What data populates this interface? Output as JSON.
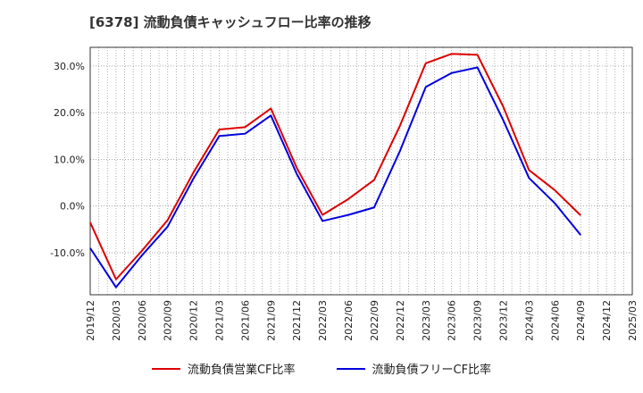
{
  "chart_data": {
    "type": "line",
    "title": "[6378]  流動負債キャッシュフロー比率の推移",
    "xlabel": "",
    "ylabel": "",
    "ylim": [
      -19,
      34
    ],
    "yticks": [
      -10,
      0,
      10,
      20,
      30
    ],
    "ytick_labels": [
      "-10.0%",
      "0.0%",
      "10.0%",
      "20.0%",
      "30.0%"
    ],
    "x_labels": [
      "2019/12",
      "2020/03",
      "2020/06",
      "2020/09",
      "2020/12",
      "2021/03",
      "2021/06",
      "2021/09",
      "2021/12",
      "2022/03",
      "2022/06",
      "2022/09",
      "2022/12",
      "2023/03",
      "2023/06",
      "2023/09",
      "2023/12",
      "2024/03",
      "2024/06",
      "2024/09",
      "2024/12",
      "2025/03"
    ],
    "grid": true,
    "legend_position": "bottom",
    "series": [
      {
        "name": "流動負債営業CF比率",
        "color": "#dd0000",
        "values": [
          -3.5,
          -15.7,
          -9.6,
          -3.0,
          7.2,
          16.4,
          16.9,
          20.9,
          8.2,
          -1.9,
          1.5,
          5.6,
          17.2,
          30.6,
          32.6,
          32.4,
          21.3,
          7.7,
          3.4,
          -2.0,
          null,
          null
        ]
      },
      {
        "name": "流動負債フリーCF比率",
        "color": "#0000dd",
        "values": [
          -9.0,
          -17.4,
          -10.6,
          -4.4,
          5.9,
          15.0,
          15.5,
          19.4,
          6.9,
          -3.2,
          -1.9,
          -0.3,
          11.8,
          25.5,
          28.5,
          29.7,
          18.4,
          6.0,
          0.6,
          -6.2,
          null,
          null
        ]
      }
    ]
  }
}
